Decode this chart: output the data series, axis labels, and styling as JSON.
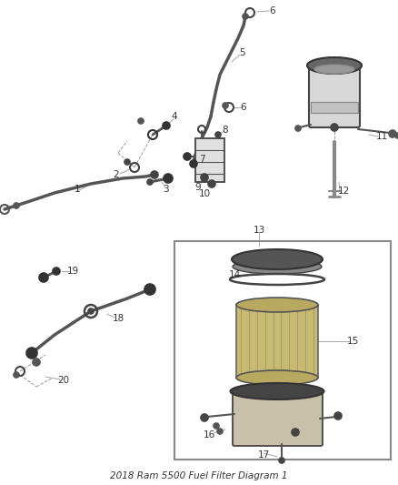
{
  "title": "2018 Ram 5500 Fuel Filter Diagram 1",
  "bg": "#ffffff",
  "lc": "#555555",
  "tc": "#333333",
  "figsize": [
    4.38,
    5.33
  ],
  "dpi": 100
}
